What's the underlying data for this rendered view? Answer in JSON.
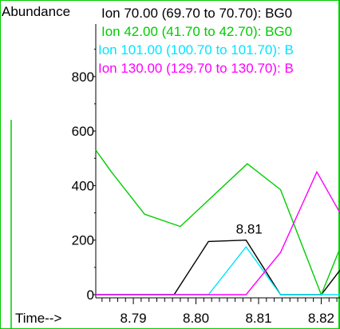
{
  "chart_data": {
    "type": "line",
    "ylabel": "Abundance",
    "xlabel": "Time-->",
    "xlim": [
      8.784,
      8.823
    ],
    "ylim": [
      -10,
      1000
    ],
    "x_ticks": [
      8.79,
      8.8,
      8.81,
      8.82
    ],
    "x_tick_labels": [
      "8.79",
      "8.80",
      "8.81",
      "8.82"
    ],
    "y_ticks": [
      0,
      200,
      400,
      600,
      800
    ],
    "y_tick_labels": [
      "0",
      "200",
      "400",
      "600",
      "800"
    ],
    "peak_annotation": {
      "text": "8.81",
      "x": 8.8085,
      "y": 200
    },
    "grid": false,
    "legend_position": "top-left",
    "series": [
      {
        "name": "Ion  70.00 (69.70 to 70.70): BG0",
        "color": "#000000",
        "x": [
          8.784,
          8.7965,
          8.802,
          8.808,
          8.8135,
          8.82,
          8.823
        ],
        "y": [
          0,
          0,
          195,
          200,
          0,
          0,
          90
        ]
      },
      {
        "name": "Ion  42.00 (41.70 to 42.70): BG0",
        "color": "#00cc00",
        "x": [
          8.784,
          8.7865,
          8.7918,
          8.7975,
          8.8082,
          8.8135,
          8.82,
          8.823
        ],
        "y": [
          530,
          450,
          295,
          250,
          480,
          385,
          0,
          170
        ]
      },
      {
        "name": "Ion 101.00 (100.70 to 101.70): B",
        "color": "#00e5ff",
        "x": [
          8.784,
          8.802,
          8.808,
          8.8135,
          8.823
        ],
        "y": [
          0,
          0,
          175,
          0,
          0
        ]
      },
      {
        "name": "Ion 130.00 (129.70 to 130.70): B",
        "color": "#ff00ff",
        "x": [
          8.784,
          8.808,
          8.8135,
          8.8193,
          8.823
        ],
        "y": [
          0,
          0,
          155,
          450,
          300
        ]
      }
    ]
  }
}
